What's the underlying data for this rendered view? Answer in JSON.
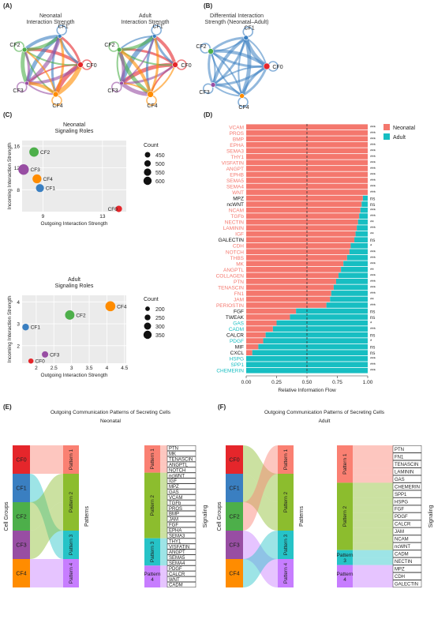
{
  "panels": {
    "A": {
      "tag": "(A)",
      "titles": [
        "Neonatal\nInteraction Strength",
        "Adult\nInteraction Strength"
      ]
    },
    "B": {
      "tag": "(B)",
      "title": "Differential Interaction\nStrength (Neonatal–Adult)"
    },
    "C": {
      "tag": "(C)"
    },
    "D": {
      "tag": "(D)"
    },
    "E": {
      "tag": "(E)"
    },
    "F": {
      "tag": "(F)"
    }
  },
  "cell_colors": {
    "CF0": "#e5262b",
    "CF1": "#3a7fc1",
    "CF2": "#4daf4a",
    "CF3": "#984ea3",
    "CF4": "#ff8c00"
  },
  "pattern_colors": {
    "Pattern 1": "#fa8072",
    "Pattern 2": "#8cbd2e",
    "Pattern 3": "#26c3c7",
    "Pattern 4": "#c77dff"
  },
  "chart_data": [
    {
      "type": "network",
      "title": "Neonatal\nInteraction Strength",
      "nodes": [
        "CF0",
        "CF1",
        "CF2",
        "CF3",
        "CF4"
      ]
    },
    {
      "type": "network",
      "title": "Adult\nInteraction Strength",
      "nodes": [
        "CF0",
        "CF1",
        "CF2",
        "CF3",
        "CF4"
      ]
    },
    {
      "type": "network",
      "title": "Differential Interaction\nStrength (Neonatal–Adult)",
      "nodes": [
        "CF0",
        "CF1",
        "CF2",
        "CF3",
        "CF4"
      ]
    },
    {
      "type": "scatter",
      "title": "Neonatal\nSignaling Roles",
      "xlabel": "Outgoing Interaction Strength",
      "ylabel": "Incoming Interaction Strength",
      "xticks": [
        9,
        13
      ],
      "yticks": [
        8,
        12,
        16
      ],
      "xlim": [
        7.6,
        14.6
      ],
      "ylim": [
        4,
        17
      ],
      "points": [
        {
          "label": "CF0",
          "x": 14.1,
          "y": 4.5,
          "count": 430
        },
        {
          "label": "CF1",
          "x": 8.8,
          "y": 8.3,
          "count": 500
        },
        {
          "label": "CF2",
          "x": 8.4,
          "y": 14.9,
          "count": 560
        },
        {
          "label": "CF3",
          "x": 7.7,
          "y": 11.7,
          "count": 610
        },
        {
          "label": "CF4",
          "x": 8.6,
          "y": 10.0,
          "count": 540
        }
      ],
      "legend": {
        "title": "Count",
        "values": [
          450,
          500,
          550,
          600
        ]
      }
    },
    {
      "type": "scatter",
      "title": "Adult\nSignaling Roles",
      "xlabel": "Outgoing Interaction Strength",
      "ylabel": "Incoming Interaction Strength",
      "xticks": [
        2.0,
        2.5,
        3.0,
        3.5,
        4.0,
        4.5
      ],
      "yticks": [
        2,
        3,
        4
      ],
      "xlim": [
        1.6,
        4.55
      ],
      "ylim": [
        1.2,
        4.3
      ],
      "points": [
        {
          "label": "CF0",
          "x": 1.85,
          "y": 1.3,
          "count": 180
        },
        {
          "label": "CF1",
          "x": 1.7,
          "y": 2.85,
          "count": 230
        },
        {
          "label": "CF2",
          "x": 2.95,
          "y": 3.4,
          "count": 320
        },
        {
          "label": "CF3",
          "x": 2.25,
          "y": 1.6,
          "count": 220
        },
        {
          "label": "CF4",
          "x": 4.1,
          "y": 3.8,
          "count": 340
        }
      ],
      "legend": {
        "title": "Count",
        "values": [
          200,
          250,
          300,
          350
        ]
      }
    },
    {
      "type": "bar",
      "stacked": true,
      "orientation": "horizontal",
      "xlabel": "Relative Information Flow",
      "xticks": [
        "0.00",
        "0.25",
        "0.50",
        "0.75",
        "1.00"
      ],
      "xlim": [
        0,
        1
      ],
      "reference_line": 0.5,
      "legend_labels": [
        "Neonatal",
        "Adult"
      ],
      "series_colors": {
        "Neonatal": "#f4776d",
        "Adult": "#17bec2"
      },
      "categories": [
        "VCAM",
        "PROS",
        "BMP",
        "EPHA",
        "SEMA3",
        "THY1",
        "VISFATIN",
        "ANGPT",
        "EPHB",
        "SEMA5",
        "SEMA4",
        "WNT",
        "MPZ",
        "ncWNT",
        "NCAM",
        "TGFb",
        "NECTIN",
        "LAMININ",
        "IGF",
        "GALECTIN",
        "CDH",
        "NOTCH",
        "THBS",
        "MK",
        "ANGPTL",
        "COLLAGEN",
        "PTN",
        "TENASCIN",
        "FN1",
        "JAM",
        "PERIOSTIN",
        "FGF",
        "TWEAK",
        "GAS",
        "CADM",
        "CALCR",
        "PDGF",
        "MIF",
        "CXCL",
        "HSPG",
        "SPP1",
        "CHEMERIN"
      ],
      "label_groups": [
        "neo",
        "neo",
        "neo",
        "neo",
        "neo",
        "neo",
        "neo",
        "neo",
        "neo",
        "neo",
        "neo",
        "neo",
        "ns",
        "ns",
        "neo",
        "neo",
        "neo",
        "neo",
        "neo",
        "ns",
        "neo",
        "neo",
        "neo",
        "neo",
        "neo",
        "neo",
        "neo",
        "neo",
        "neo",
        "neo",
        "neo",
        "ns",
        "ns",
        "adult",
        "adult",
        "ns",
        "adult",
        "ns",
        "ns",
        "adult",
        "adult",
        "adult"
      ],
      "neonatal_share": [
        1.0,
        1.0,
        1.0,
        1.0,
        1.0,
        1.0,
        1.0,
        1.0,
        1.0,
        1.0,
        1.0,
        1.0,
        0.96,
        0.95,
        0.94,
        0.93,
        0.92,
        0.91,
        0.9,
        0.89,
        0.86,
        0.85,
        0.83,
        0.8,
        0.78,
        0.76,
        0.74,
        0.72,
        0.7,
        0.69,
        0.66,
        0.41,
        0.36,
        0.25,
        0.22,
        0.16,
        0.14,
        0.1,
        0.05,
        0.0,
        0.0,
        0.0
      ],
      "significance": [
        "***",
        "***",
        "***",
        "***",
        "***",
        "***",
        "***",
        "***",
        "***",
        "***",
        "***",
        "***",
        "ns",
        "ns",
        "***",
        "***",
        "**",
        "***",
        "**",
        "ns",
        "*",
        "***",
        "***",
        "***",
        "**",
        "***",
        "***",
        "***",
        "***",
        "**",
        "***",
        "ns",
        "ns",
        "*",
        "***",
        "ns",
        "*",
        "ns",
        "ns",
        "***",
        "***",
        "***"
      ]
    },
    {
      "type": "sankey",
      "title": "Outgoing Communication Patterns of Secreting Cells",
      "subtitle": "Neonatal",
      "axis_labels": {
        "groups": "Cell Groups",
        "patterns": "Patterns",
        "signaling": "Signaling"
      },
      "cell_groups": [
        "CF0",
        "CF1",
        "CF2",
        "CF3",
        "CF4"
      ],
      "patterns": [
        "Pattern 1",
        "Pattern 2",
        "Pattern 3",
        "Pattern 4"
      ],
      "pattern_labels": [
        "Pattern 1",
        "Pattern 2",
        "Pattern 3",
        "Pattern 4"
      ],
      "group_to_pattern": [
        {
          "from": "CF0",
          "to": "Pattern 1"
        },
        {
          "from": "CF1",
          "to": "Pattern 3"
        },
        {
          "from": "CF2",
          "to": "Pattern 2"
        },
        {
          "from": "CF3",
          "to": "Pattern 2"
        },
        {
          "from": "CF4",
          "to": "Pattern 4"
        }
      ],
      "signaling": [
        "PTN",
        "MK",
        "TENASCIN",
        "ANGPTL",
        "NOTCH",
        "ncWNT",
        "IGF",
        "MPZ",
        "GAS",
        "VCAM",
        "TGFb",
        "PROS",
        "BMP",
        "JAM",
        "FGF",
        "EPHA",
        "SEMA3",
        "THY1",
        "VISFATIN",
        "ANGPT",
        "SEMA5",
        "SEMA4",
        "PDGF",
        "CALCR",
        "WNT",
        "CADM"
      ],
      "signal_pattern": [
        1,
        1,
        1,
        1,
        1,
        2,
        2,
        2,
        2,
        2,
        2,
        2,
        2,
        2,
        2,
        2,
        2,
        3,
        3,
        3,
        3,
        3,
        4,
        4,
        4,
        4
      ]
    },
    {
      "type": "sankey",
      "title": "Outgoing Communication Patterns of Secreting Cells",
      "subtitle": "Adult",
      "axis_labels": {
        "groups": "Cell Groups",
        "patterns": "Patterns",
        "signaling": "Signaling"
      },
      "cell_groups": [
        "CF0",
        "CF1",
        "CF2",
        "CF3",
        "CF4"
      ],
      "patterns": [
        "Pattern 1",
        "Pattern 2",
        "Pattern 3",
        "Pattern 4"
      ],
      "pattern_labels": [
        "Pattern 1",
        "Pattern 2",
        "Pattern 3",
        "Pattern 4"
      ],
      "group_to_pattern": [
        {
          "from": "CF0",
          "to": "Pattern 2"
        },
        {
          "from": "CF1",
          "to": "Pattern 2"
        },
        {
          "from": "CF2",
          "to": "Pattern 1"
        },
        {
          "from": "CF3",
          "to": "Pattern 4"
        },
        {
          "from": "CF4",
          "to": "Pattern 3"
        }
      ],
      "signaling": [
        "PTN",
        "FN1",
        "TENASCIN",
        "LAMININ",
        "GAS",
        "CHEMERIN",
        "SPP1",
        "HSPG",
        "FGF",
        "PDGF",
        "CALCR",
        "JAM",
        "NCAM",
        "ncWNT",
        "CADM",
        "NECTIN",
        "MPZ",
        "CDH",
        "GALECTIN"
      ],
      "signal_pattern": [
        1,
        1,
        1,
        1,
        1,
        2,
        2,
        2,
        2,
        2,
        2,
        2,
        2,
        2,
        3,
        3,
        4,
        4,
        4
      ]
    }
  ]
}
